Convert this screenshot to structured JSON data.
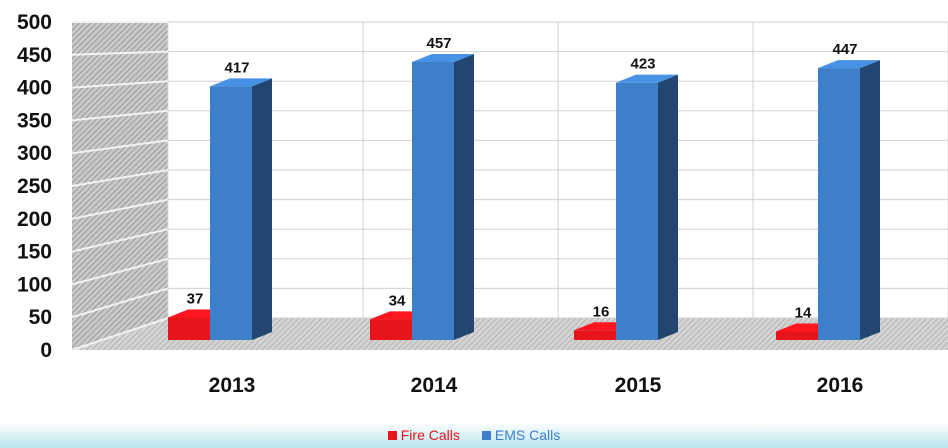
{
  "chart_data": {
    "type": "bar",
    "categories": [
      "2013",
      "2014",
      "2015",
      "2016"
    ],
    "series": [
      {
        "name": "Fire Calls",
        "values": [
          37,
          34,
          16,
          14
        ],
        "color": "#e8141b"
      },
      {
        "name": "EMS Calls",
        "values": [
          417,
          457,
          423,
          447
        ],
        "color": "#3d7fc9"
      }
    ],
    "yticks": [
      "0",
      "50",
      "100",
      "150",
      "200",
      "250",
      "300",
      "350",
      "400",
      "450",
      "500"
    ],
    "ylim": [
      0,
      500
    ],
    "grid": true,
    "legend_position": "bottom",
    "style": "3d-clustered-column"
  }
}
